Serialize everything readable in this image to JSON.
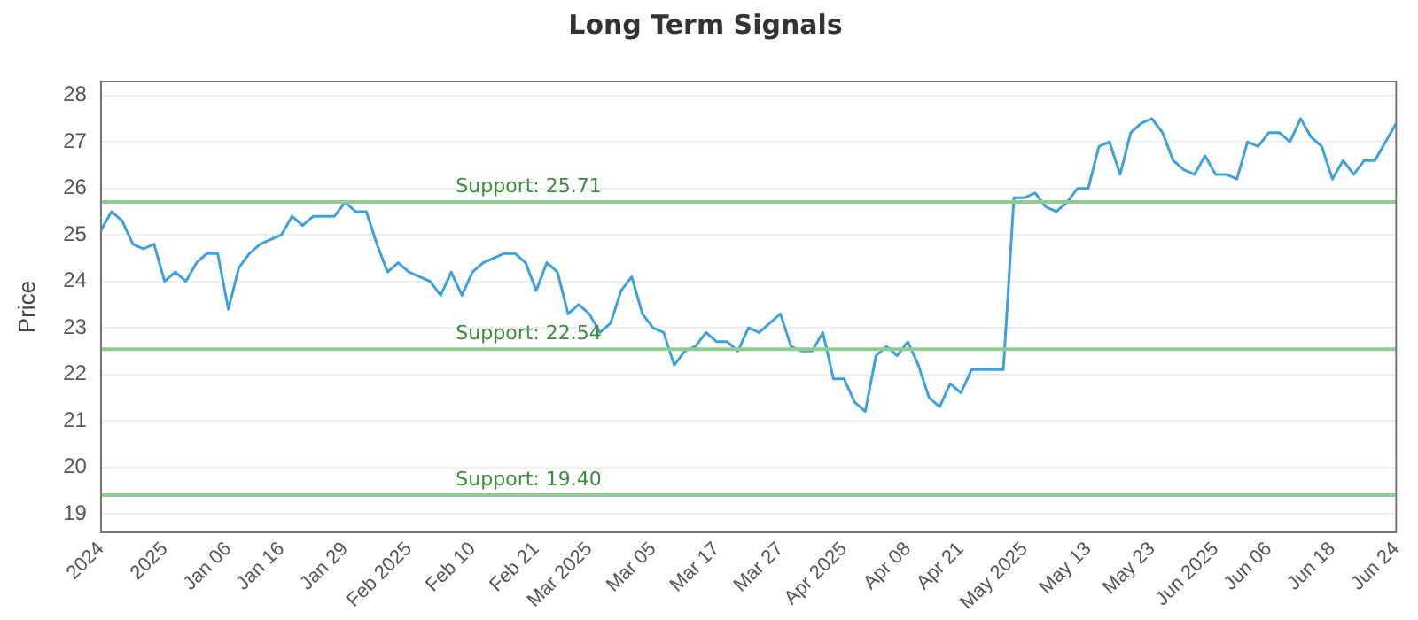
{
  "chart_data": {
    "type": "line",
    "title": "Long Term Signals",
    "ylabel": "Price",
    "categories": [
      "2024",
      null,
      null,
      null,
      null,
      null,
      "2025",
      null,
      null,
      null,
      null,
      null,
      "Jan 06",
      null,
      null,
      null,
      null,
      "Jan 16",
      null,
      null,
      null,
      null,
      null,
      "Jan 29",
      null,
      null,
      null,
      null,
      null,
      "Feb 2025",
      null,
      null,
      null,
      null,
      null,
      "Feb 10",
      null,
      null,
      null,
      null,
      null,
      "Feb 21",
      null,
      null,
      null,
      null,
      "Mar 2025",
      null,
      null,
      null,
      null,
      null,
      "Mar 05",
      null,
      null,
      null,
      null,
      null,
      "Mar 17",
      null,
      null,
      null,
      null,
      null,
      "Mar 27",
      null,
      null,
      null,
      null,
      null,
      "Apr 2025",
      null,
      null,
      null,
      null,
      null,
      "Apr 08",
      null,
      null,
      null,
      null,
      "Apr 21",
      null,
      null,
      null,
      null,
      null,
      "May 2025",
      null,
      null,
      null,
      null,
      null,
      "May 13",
      null,
      null,
      null,
      null,
      null,
      "May 23",
      null,
      null,
      null,
      null,
      null,
      "Jun 2025",
      null,
      null,
      null,
      null,
      "Jun 06",
      null,
      null,
      null,
      null,
      null,
      "Jun 18",
      null,
      null,
      null,
      null,
      null,
      "Jun 24"
    ],
    "series": [
      {
        "color": "#3fa0e0",
        "values": [
          25.1,
          25.5,
          25.3,
          24.8,
          24.7,
          24.8,
          24.0,
          24.2,
          24.0,
          24.4,
          24.6,
          24.6,
          23.4,
          24.3,
          24.6,
          24.8,
          24.9,
          25.0,
          25.4,
          25.2,
          25.4,
          25.4,
          25.4,
          25.7,
          25.5,
          25.5,
          24.8,
          24.2,
          24.4,
          24.2,
          24.1,
          24.0,
          23.7,
          24.2,
          23.7,
          24.2,
          24.4,
          24.5,
          24.6,
          24.6,
          24.4,
          23.8,
          24.4,
          24.2,
          23.3,
          23.5,
          23.3,
          22.9,
          23.1,
          23.8,
          24.1,
          23.3,
          23.0,
          22.9,
          22.2,
          22.5,
          22.6,
          22.9,
          22.7,
          22.7,
          22.5,
          23.0,
          22.9,
          23.1,
          23.3,
          22.6,
          22.5,
          22.5,
          22.9,
          21.9,
          21.9,
          21.4,
          21.2,
          22.4,
          22.6,
          22.4,
          22.7,
          22.2,
          21.5,
          21.3,
          21.8,
          21.6,
          22.1,
          22.1,
          22.1,
          22.1,
          25.8,
          25.8,
          25.9,
          25.6,
          25.5,
          25.7,
          26.0,
          26.0,
          26.9,
          27.0,
          26.3,
          27.2,
          27.4,
          27.5,
          27.2,
          26.6,
          26.4,
          26.3,
          26.7,
          26.3,
          26.3,
          26.2,
          27.0,
          26.9,
          27.2,
          27.2,
          27.0,
          27.5,
          27.1,
          26.9,
          26.2,
          26.6,
          26.3,
          26.6,
          26.6,
          27.0,
          27.4
        ]
      }
    ],
    "ylim": [
      18.6,
      28.3
    ],
    "yticks": [
      19,
      20,
      21,
      22,
      23,
      24,
      25,
      26,
      27,
      28
    ],
    "ref_lines": [
      {
        "axis": "y",
        "value": 25.71,
        "label": "Support: 25.71",
        "color": "#8fcc8f"
      },
      {
        "axis": "y",
        "value": 22.54,
        "label": "Support: 22.54",
        "color": "#8fcc8f"
      },
      {
        "axis": "y",
        "value": 19.4,
        "label": "Support: 19.40",
        "color": "#8fcc8f"
      }
    ],
    "grid": "y",
    "legend": false,
    "marker": "none",
    "line_style": "solid"
  }
}
